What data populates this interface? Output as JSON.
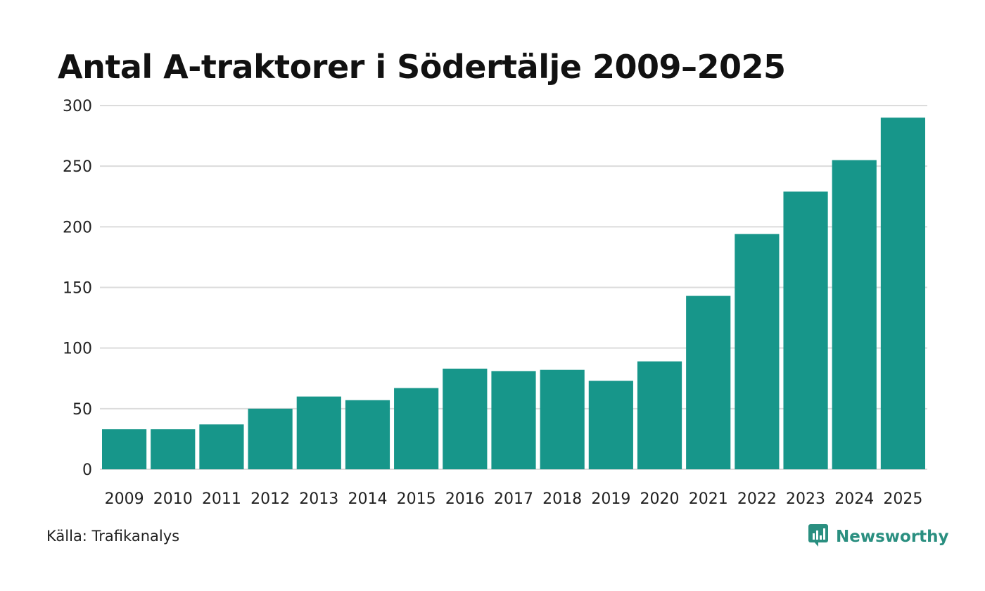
{
  "chart_data": {
    "type": "bar",
    "title": "Antal A-traktorer i Södertälje 2009–2025",
    "categories": [
      "2009",
      "2010",
      "2011",
      "2012",
      "2013",
      "2014",
      "2015",
      "2016",
      "2017",
      "2018",
      "2019",
      "2020",
      "2021",
      "2022",
      "2023",
      "2024",
      "2025"
    ],
    "values": [
      33,
      33,
      37,
      50,
      60,
      57,
      67,
      83,
      81,
      82,
      73,
      89,
      143,
      194,
      229,
      255,
      290
    ],
    "ylim": [
      0,
      300
    ],
    "yticks": [
      0,
      50,
      100,
      150,
      200,
      250,
      300
    ],
    "xlabel": "",
    "ylabel": "",
    "grid": true,
    "bar_color": "#17968a"
  },
  "footer": {
    "source": "Källa: Trafikanalys",
    "brand": "Newsworthy"
  },
  "colors": {
    "bar": "#17968a",
    "grid": "#dcdcdc",
    "brand": "#2a8f80"
  },
  "icons": {
    "brand_logo": "bar-chart-speech-bubble-icon"
  }
}
